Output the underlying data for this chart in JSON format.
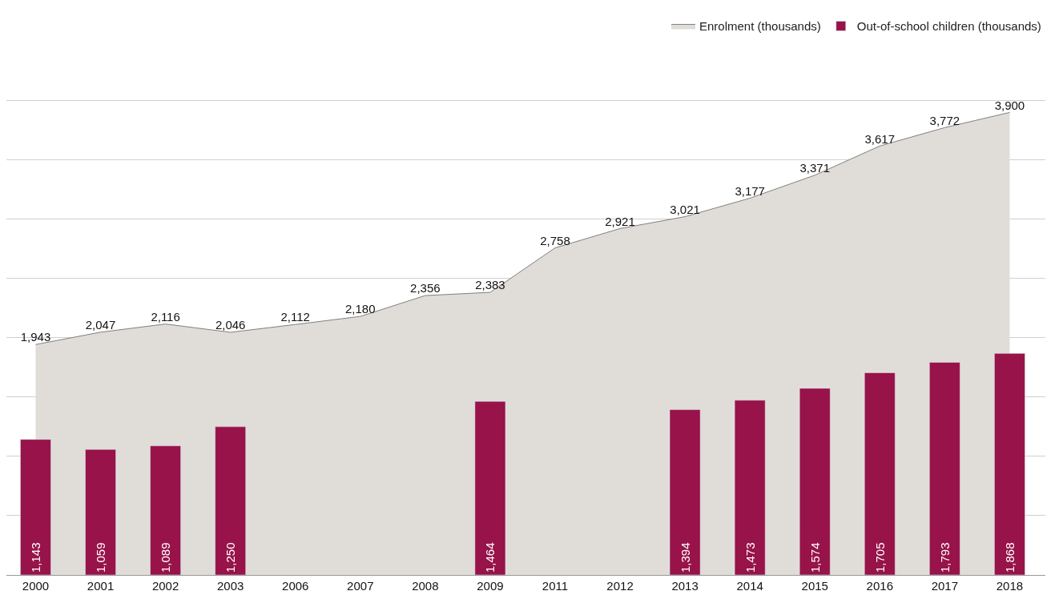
{
  "chart_data": {
    "type": "bar",
    "categories": [
      "2000",
      "2001",
      "2002",
      "2003",
      "2006",
      "2007",
      "2008",
      "2009",
      "2011",
      "2012",
      "2013",
      "2014",
      "2015",
      "2016",
      "2017",
      "2018"
    ],
    "series": [
      {
        "name": "Enrolment (thousands)",
        "type": "area",
        "color": "#e0ddd8",
        "values": [
          1943,
          2047,
          2116,
          2046,
          2112,
          2180,
          2356,
          2383,
          2758,
          2921,
          3021,
          3177,
          3371,
          3617,
          3772,
          3900
        ],
        "value_labels": [
          "1,943",
          "2,047",
          "2,116",
          "2,046",
          "2,112",
          "2,180",
          "2,356",
          "2,383",
          "2,758",
          "2,921",
          "3,021",
          "3,177",
          "3,371",
          "3,617",
          "3,772",
          "3,900"
        ]
      },
      {
        "name": "Out-of-school children (thousands)",
        "color": "#97134a",
        "values": [
          1143,
          1059,
          1089,
          1250,
          null,
          null,
          null,
          1464,
          null,
          null,
          1394,
          1473,
          1574,
          1705,
          1793,
          1868
        ],
        "value_labels": [
          "1,143",
          "1,059",
          "1,089",
          "1,250",
          null,
          null,
          null,
          "1,464",
          null,
          null,
          "1,394",
          "1,473",
          "1,574",
          "1,705",
          "1,793",
          "1,868"
        ]
      }
    ],
    "tick_labels": "x",
    "grid": "y",
    "legend": "top right"
  }
}
